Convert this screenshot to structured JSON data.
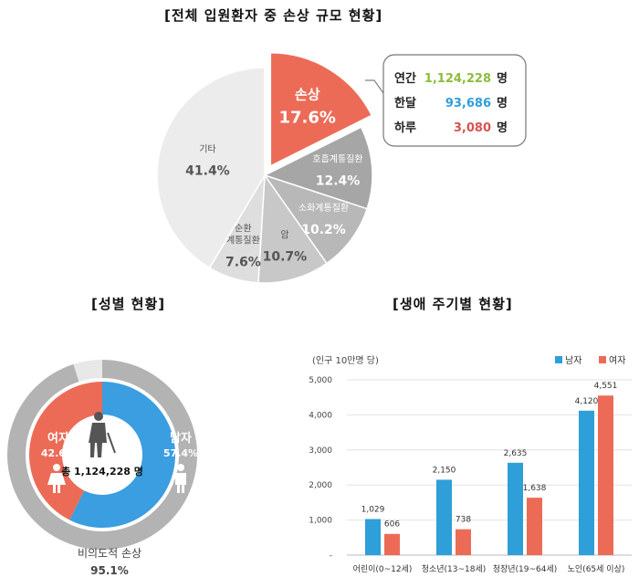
{
  "titles": {
    "main": "[전체 입원환자 중 손상 규모 현황]",
    "gender": "[성별 현황]",
    "life": "[생애 주기별 현황]"
  },
  "chart_data": [
    {
      "type": "pie",
      "title": "[전체 입원환자 중 손상 규모 현황]",
      "slices": [
        {
          "label": "손상",
          "pct": "17.6%",
          "value": 17.6,
          "color": "#ec6b57"
        },
        {
          "label": "호흡계통질환",
          "pct": "12.4%",
          "value": 12.4,
          "color": "#a6a6a6"
        },
        {
          "label": "소화계통질환",
          "pct": "10.2%",
          "value": 10.2,
          "color": "#b8b8b8"
        },
        {
          "label": "암",
          "pct": "10.7%",
          "value": 10.7,
          "color": "#c8c8c8"
        },
        {
          "label": "순환 계통질환",
          "label_lines": [
            "순환",
            "계통질환"
          ],
          "pct": "7.6%",
          "value": 7.6,
          "color": "#dedede"
        },
        {
          "label": "기타",
          "pct": "41.4%",
          "value": 41.4,
          "color": "#ececec"
        }
      ],
      "callout": [
        {
          "label": "연간",
          "value": "1,124,228",
          "unit": "명",
          "color": "#8bbd3a"
        },
        {
          "label": "한달",
          "value": "93,686",
          "unit": "명",
          "color": "#2e9fd8"
        },
        {
          "label": "하루",
          "value": "3,080",
          "unit": "명",
          "color": "#d9534f"
        }
      ]
    },
    {
      "type": "pie",
      "title": "[성별 현황]",
      "slices": [
        {
          "label": "남자",
          "pct": "57.4%",
          "value": 57.4,
          "color": "#3a9ee0"
        },
        {
          "label": "여자",
          "pct": "42.6%",
          "value": 42.6,
          "color": "#ec6b57"
        }
      ],
      "center_text": "총 1,124,228 명",
      "outer_ring": {
        "label": "비의도적 손상",
        "pct": "95.1%",
        "value": 95.1,
        "color": "#b3b3b3",
        "rest_color": "#e8e8e8"
      }
    },
    {
      "type": "bar",
      "title": "[생애 주기별 현황]",
      "unit_label": "(인구 10만명 당)",
      "categories": [
        "어린이(0~12세)",
        "청소년(13~18세)",
        "청장년(19~64세)",
        "노인(65세 이상)"
      ],
      "series": [
        {
          "name": "남자",
          "values": [
            1029,
            2150,
            2635,
            4120
          ],
          "labels": [
            "1,029",
            "2,150",
            "2,635",
            "4,120"
          ],
          "color": "#2e9fd8"
        },
        {
          "name": "여자",
          "values": [
            606,
            738,
            1638,
            4551
          ],
          "labels": [
            "606",
            "738",
            "1,638",
            "4,551"
          ],
          "color": "#ec6b57"
        }
      ],
      "yticks": [
        "-",
        "1,000",
        "2,000",
        "3,000",
        "4,000",
        "5,000"
      ],
      "ylim": [
        0,
        5000
      ],
      "grid": true,
      "legend": "top-right"
    }
  ]
}
